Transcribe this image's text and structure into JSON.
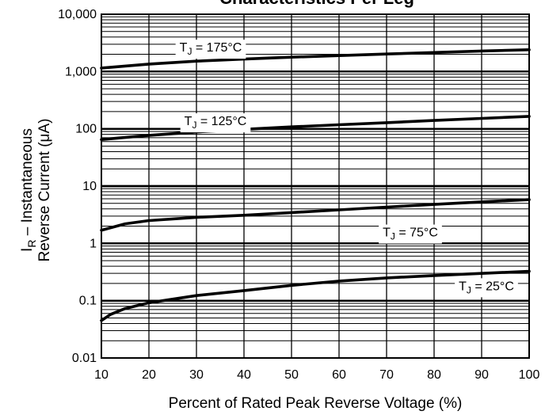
{
  "chart_data": {
    "type": "line",
    "title": "Characteristics Per Leg",
    "xlabel": "Percent of Rated Peak Reverse Voltage (%)",
    "ylabel_main": "I",
    "ylabel_sub": "R",
    "ylabel_rest": " – Instantaneous",
    "ylabel_line2": "Reverse Current (μA)",
    "x_ticks": [
      "10",
      "20",
      "30",
      "40",
      "50",
      "60",
      "70",
      "80",
      "90",
      "100"
    ],
    "xlim": [
      10,
      100
    ],
    "y_scale": "log",
    "ylim": [
      0.01,
      10000
    ],
    "y_ticks": [
      "0.01",
      "0.1",
      "1",
      "10",
      "100",
      "1,000",
      "10,000"
    ],
    "grid": true,
    "series": [
      {
        "name": "T_J = 175°C",
        "label_main": "T",
        "label_sub": "J",
        "label_rest": " = 175°C",
        "label_at": [
          33,
          2700
        ],
        "x": [
          10,
          20,
          30,
          40,
          50,
          60,
          70,
          80,
          90,
          100
        ],
        "y": [
          1150,
          1350,
          1520,
          1650,
          1780,
          1900,
          2020,
          2150,
          2280,
          2400
        ]
      },
      {
        "name": "T_J = 125°C",
        "label_main": "T",
        "label_sub": "J",
        "label_rest": " = 125°C",
        "label_at": [
          34,
          140
        ],
        "x": [
          10,
          20,
          30,
          40,
          50,
          60,
          70,
          80,
          90,
          100
        ],
        "y": [
          65,
          77,
          88,
          98,
          108,
          118,
          128,
          140,
          152,
          165
        ]
      },
      {
        "name": "T_J = 75°C",
        "label_main": "T",
        "label_sub": "J",
        "label_rest": " = 75°C",
        "label_at": [
          75,
          1.6
        ],
        "x": [
          10,
          15,
          20,
          30,
          40,
          50,
          60,
          70,
          80,
          90,
          100
        ],
        "y": [
          1.7,
          2.2,
          2.5,
          2.85,
          3.1,
          3.45,
          3.85,
          4.3,
          4.8,
          5.3,
          5.8
        ]
      },
      {
        "name": "T_J = 25°C",
        "label_main": "T",
        "label_sub": "J",
        "label_rest": " = 25°C",
        "label_at": [
          91,
          0.185
        ],
        "x": [
          10,
          12,
          15,
          20,
          30,
          40,
          50,
          60,
          70,
          80,
          90,
          100
        ],
        "y": [
          0.045,
          0.058,
          0.073,
          0.092,
          0.123,
          0.15,
          0.185,
          0.22,
          0.25,
          0.275,
          0.3,
          0.325
        ]
      }
    ]
  }
}
